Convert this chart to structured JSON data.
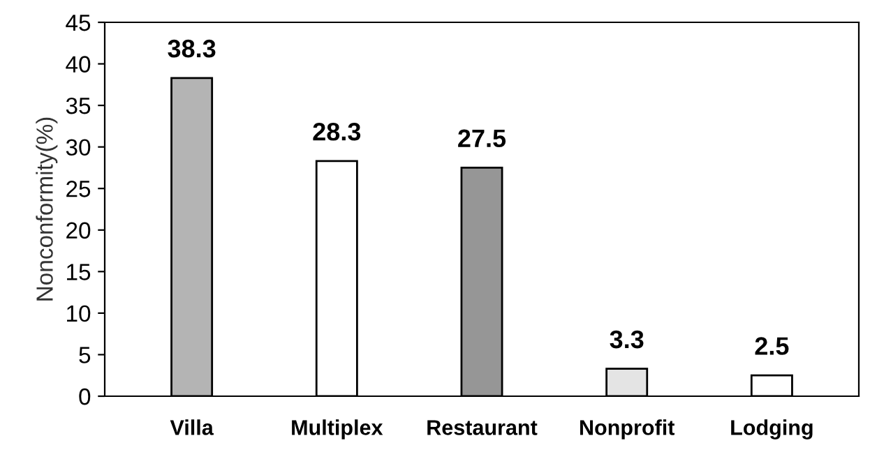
{
  "chart_data": {
    "type": "bar",
    "ylabel": "Nonconformity(%)",
    "categories": [
      "Villa",
      "Multiplex",
      "Restaurant",
      "Nonprofit",
      "Lodging"
    ],
    "values": [
      38.3,
      28.3,
      27.5,
      3.3,
      2.5
    ],
    "colors": [
      "#b4b4b4",
      "#ffffff",
      "#969696",
      "#e4e4e4",
      "#ffffff"
    ],
    "ylim": [
      0,
      45
    ],
    "yticks": [
      0,
      5,
      10,
      15,
      20,
      25,
      30,
      35,
      40,
      45
    ],
    "grid": false,
    "data_labels": true
  }
}
